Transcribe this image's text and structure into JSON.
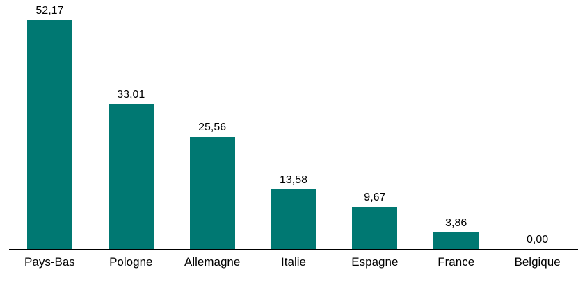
{
  "chart_data": {
    "type": "bar",
    "categories": [
      "Pays-Bas",
      "Pologne",
      "Allemagne",
      "Italie",
      "Espagne",
      "France",
      "Belgique"
    ],
    "values": [
      52.17,
      33.01,
      25.56,
      13.58,
      9.67,
      3.86,
      0.0
    ],
    "value_labels": [
      "52,17",
      "33,01",
      "25,56",
      "13,58",
      "9,67",
      "3,86",
      "0,00"
    ],
    "title": "",
    "xlabel": "",
    "ylabel": "",
    "ylim": [
      0,
      56.8
    ],
    "grid": false,
    "legend": false,
    "decimal_separator": ",",
    "bar_color": "#007872",
    "axis_color": "#000000",
    "text_color": "#000000",
    "background_color": "#ffffff"
  }
}
